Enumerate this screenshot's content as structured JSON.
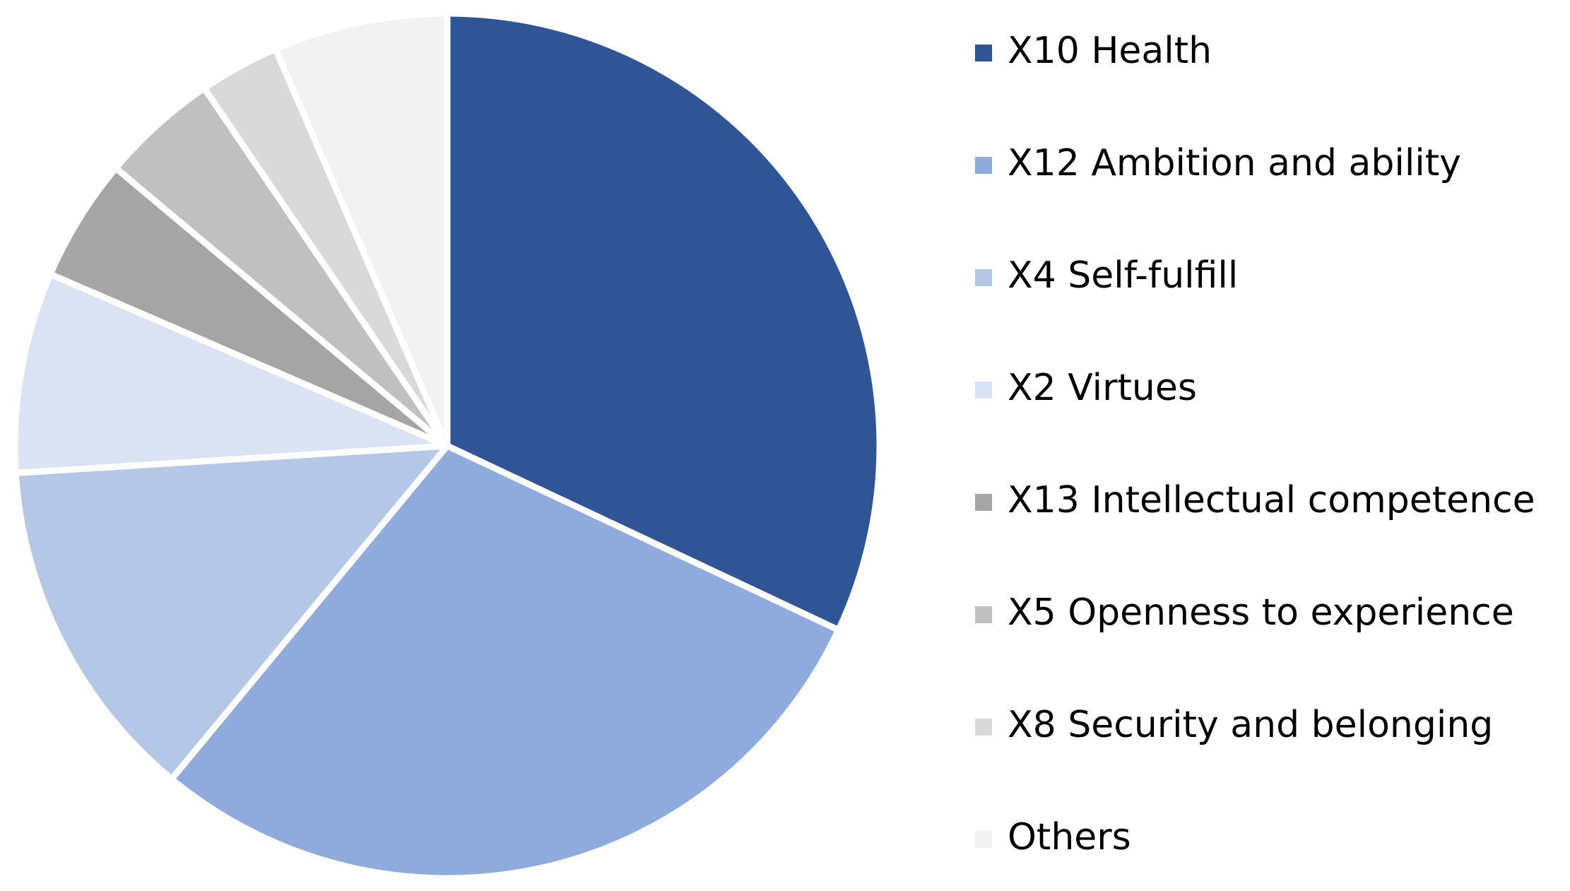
{
  "chart_data": {
    "type": "pie",
    "categories": [
      "X10 Health",
      "X12 Ambition and ability",
      "X4 Self-fulfill",
      "X2 Virtues",
      "X13 Intellectual competence",
      "X5 Openness to experience",
      "X8 Security and belonging",
      "Others"
    ],
    "values": [
      32,
      29,
      13,
      7.5,
      4.6,
      4.4,
      3,
      6.5
    ],
    "colors": [
      "#2f5597",
      "#8faadc",
      "#b4c7e7",
      "#dae3f3",
      "#a5a5a5",
      "#c0c0c0",
      "#d9d9d9",
      "#f2f2f2"
    ],
    "legend": "right"
  }
}
